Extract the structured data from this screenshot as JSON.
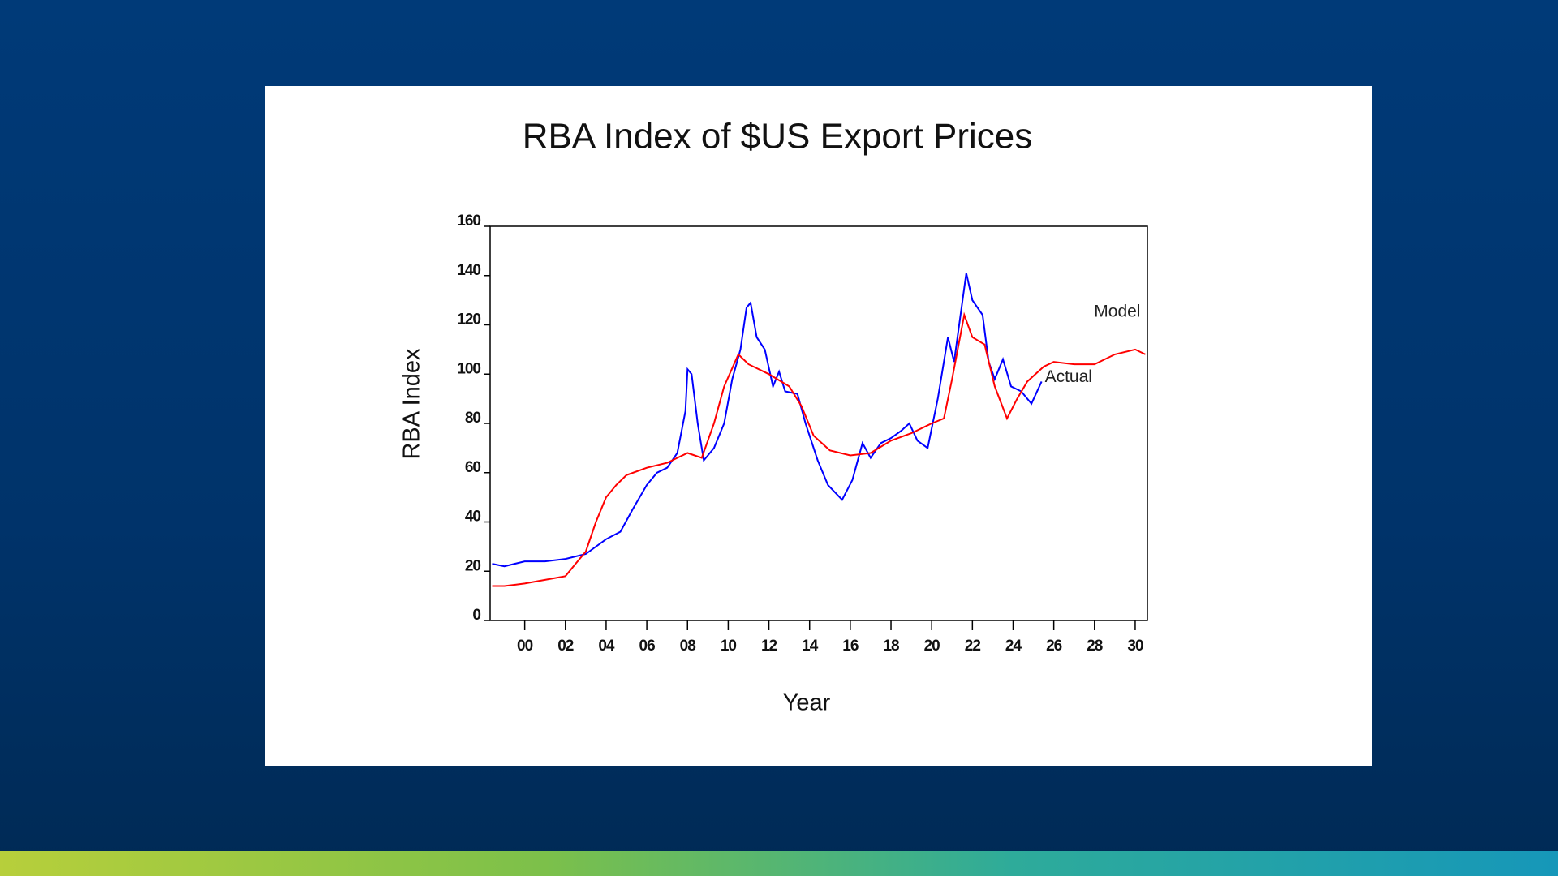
{
  "chart_data": {
    "type": "line",
    "title": "RBA Index of $US Export Prices",
    "x_label": "Year",
    "y_label": "RBA Index",
    "xlim": [
      1998.3,
      2030.6
    ],
    "xticks": [
      {
        "value": 2000,
        "label": "00"
      },
      {
        "value": 2002,
        "label": "02"
      },
      {
        "value": 2004,
        "label": "04"
      },
      {
        "value": 2006,
        "label": "06"
      },
      {
        "value": 2008,
        "label": "08"
      },
      {
        "value": 2010,
        "label": "10"
      },
      {
        "value": 2012,
        "label": "12"
      },
      {
        "value": 2014,
        "label": "14"
      },
      {
        "value": 2016,
        "label": "16"
      },
      {
        "value": 2018,
        "label": "18"
      },
      {
        "value": 2020,
        "label": "20"
      },
      {
        "value": 2022,
        "label": "22"
      },
      {
        "value": 2024,
        "label": "24"
      },
      {
        "value": 2026,
        "label": "26"
      },
      {
        "value": 2028,
        "label": "28"
      },
      {
        "value": 2030,
        "label": "30"
      }
    ],
    "ylim": [
      0,
      160
    ],
    "yticks": [
      0,
      20,
      40,
      60,
      80,
      100,
      120,
      140,
      160
    ],
    "series": [
      {
        "name": "Actual",
        "color": "#0000ff",
        "x": [
          1998.4,
          1999,
          2000,
          2001,
          2002,
          2003,
          2004,
          2004.7,
          2005.3,
          2006,
          2006.5,
          2007,
          2007.5,
          2007.9,
          2008.0,
          2008.2,
          2008.5,
          2008.8,
          2009.3,
          2009.8,
          2010.2,
          2010.6,
          2010.9,
          2011.1,
          2011.4,
          2011.8,
          2012.2,
          2012.5,
          2012.8,
          2013.4,
          2013.8,
          2014.4,
          2014.9,
          2015.6,
          2016.1,
          2016.6,
          2017,
          2017.5,
          2018,
          2018.5,
          2018.9,
          2019.3,
          2019.8,
          2020.3,
          2020.8,
          2021.1,
          2021.7,
          2022,
          2022.5,
          2022.8,
          2023.1,
          2023.5,
          2023.9,
          2024.4,
          2024.9,
          2025.4
        ],
        "values": [
          23,
          22,
          24,
          24,
          25,
          27,
          33,
          36,
          45,
          55,
          60,
          62,
          68,
          85,
          102,
          100,
          80,
          65,
          70,
          80,
          98,
          110,
          127,
          129,
          115,
          110,
          95,
          101,
          93,
          92,
          80,
          65,
          55,
          49,
          57,
          72,
          66,
          72,
          74,
          77,
          80,
          73,
          70,
          90,
          115,
          105,
          141,
          130,
          124,
          105,
          98,
          106,
          95,
          93,
          88,
          97
        ]
      },
      {
        "name": "Model",
        "color": "#ff0000",
        "x": [
          1998.4,
          1999,
          2000,
          2001,
          2002,
          2002.5,
          2003,
          2003.5,
          2004,
          2004.5,
          2005,
          2006,
          2007,
          2007.5,
          2008,
          2008.7,
          2009.3,
          2009.8,
          2010.5,
          2011,
          2012,
          2013,
          2013.6,
          2014.2,
          2015,
          2016,
          2017,
          2018,
          2019,
          2020,
          2020.6,
          2021,
          2021.6,
          2022,
          2022.6,
          2023.1,
          2023.7,
          2024.2,
          2024.7,
          2025.5,
          2026,
          2027,
          2028,
          2029,
          2030,
          2030.5
        ],
        "values": [
          14,
          14,
          15,
          16.5,
          18,
          23,
          28,
          40,
          50,
          55,
          59,
          62,
          64,
          66,
          68,
          66,
          80,
          95,
          108,
          104,
          100,
          95,
          87,
          75,
          69,
          67,
          68,
          73,
          76,
          80,
          82,
          98,
          124,
          115,
          112,
          95,
          82,
          90,
          97,
          103,
          105,
          104,
          104,
          108,
          110,
          108
        ]
      }
    ]
  }
}
